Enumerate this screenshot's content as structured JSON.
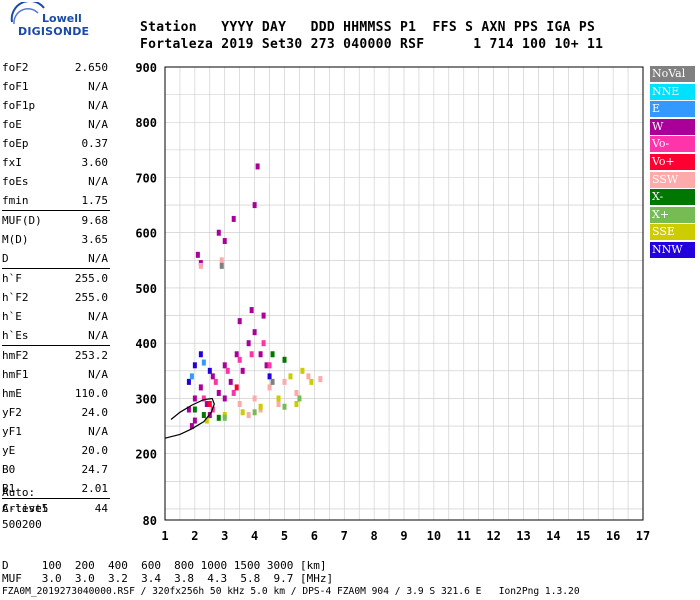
{
  "logo": {
    "top": "Lowell",
    "bottom": "DIGISONDE"
  },
  "header": {
    "line1": "Station   YYYY DAY   DDD HHMMSS P1  FFS S AXN PPS IGA PS",
    "line2": "Fortaleza 2019 Set30 273 040000 RSF      1 714 100 10+ 11"
  },
  "params": [
    {
      "label": "foF2",
      "value": "2.650"
    },
    {
      "label": "foF1",
      "value": "N/A"
    },
    {
      "label": "foF1p",
      "value": "N/A"
    },
    {
      "label": "foE",
      "value": "N/A"
    },
    {
      "label": "foEp",
      "value": "0.37"
    },
    {
      "label": "fxI",
      "value": "3.60"
    },
    {
      "label": "foEs",
      "value": "N/A"
    },
    {
      "label": "fmin",
      "value": "1.75"
    },
    {
      "label": "MUF(D)",
      "value": "9.68"
    },
    {
      "label": "M(D)",
      "value": "3.65"
    },
    {
      "label": "D",
      "value": "N/A"
    },
    {
      "label": "h`F",
      "value": "255.0"
    },
    {
      "label": "h`F2",
      "value": "255.0"
    },
    {
      "label": "h`E",
      "value": "N/A"
    },
    {
      "label": "h`Es",
      "value": "N/A"
    },
    {
      "label": "hmF2",
      "value": "253.2"
    },
    {
      "label": "hmF1",
      "value": "N/A"
    },
    {
      "label": "hmE",
      "value": "110.0"
    },
    {
      "label": "yF2",
      "value": "24.0"
    },
    {
      "label": "yF1",
      "value": "N/A"
    },
    {
      "label": "yE",
      "value": "20.0"
    },
    {
      "label": "B0",
      "value": "24.7"
    },
    {
      "label": "B1",
      "value": "2.01"
    },
    {
      "label": "C-level",
      "value": "44"
    }
  ],
  "auto": {
    "line1": "Auto:",
    "line2": "Artist5",
    "line3": "500200"
  },
  "legend": [
    {
      "label": "NoVal",
      "color": "#808080"
    },
    {
      "label": "NNE",
      "color": "#00e0ff"
    },
    {
      "label": "E",
      "color": "#3399ff"
    },
    {
      "label": "W",
      "color": "#aa0099"
    },
    {
      "label": "Vo-",
      "color": "#ff33aa"
    },
    {
      "label": "Vo+",
      "color": "#ff0033"
    },
    {
      "label": "SSW",
      "color": "#ffaaaa"
    },
    {
      "label": "X-",
      "color": "#007700"
    },
    {
      "label": "X+",
      "color": "#77bb55"
    },
    {
      "label": "SSE",
      "color": "#cccc00"
    },
    {
      "label": "NNW",
      "color": "#2200dd"
    }
  ],
  "bottom": {
    "line1": "D     100  200  400  600  800 1000 1500 3000 [km]",
    "line2": "MUF   3.0  3.0  3.2  3.4  3.8  4.3  5.8  9.7 [MHz]",
    "line3": "FZA0M_2019273040000.RSF / 320fx256h 50 kHz 5.0 km / DPS-4 FZA0M 904 / 3.9 S 321.6 E   Ion2Png 1.3.20"
  },
  "chart_data": {
    "type": "scatter",
    "xlim": [
      1,
      17
    ],
    "ylim": [
      80,
      900
    ],
    "x_ticks": [
      1,
      2,
      3,
      4,
      5,
      6,
      7,
      8,
      9,
      10,
      11,
      12,
      13,
      14,
      15,
      16,
      17
    ],
    "y_ticks": [
      80,
      200,
      300,
      400,
      500,
      600,
      700,
      800,
      900
    ],
    "grid": true,
    "series": [
      {
        "name": "W",
        "color": "#aa0099",
        "points": [
          [
            1.8,
            280
          ],
          [
            2.0,
            300
          ],
          [
            2.2,
            320
          ],
          [
            2.4,
            290
          ],
          [
            2.6,
            340
          ],
          [
            2.8,
            310
          ],
          [
            3.0,
            360
          ],
          [
            3.2,
            330
          ],
          [
            3.4,
            380
          ],
          [
            3.6,
            350
          ],
          [
            3.8,
            400
          ],
          [
            4.0,
            420
          ],
          [
            4.2,
            380
          ],
          [
            4.4,
            360
          ],
          [
            3.0,
            300
          ],
          [
            2.5,
            270
          ],
          [
            2.0,
            260
          ],
          [
            1.9,
            250
          ],
          [
            2.1,
            560
          ],
          [
            2.2,
            545
          ],
          [
            2.8,
            600
          ],
          [
            3.0,
            585
          ],
          [
            3.3,
            625
          ],
          [
            4.0,
            650
          ],
          [
            4.1,
            720
          ],
          [
            3.9,
            460
          ],
          [
            4.3,
            450
          ],
          [
            3.5,
            440
          ]
        ]
      },
      {
        "name": "Vo-",
        "color": "#ff33aa",
        "points": [
          [
            2.3,
            300
          ],
          [
            2.7,
            330
          ],
          [
            3.1,
            350
          ],
          [
            3.5,
            370
          ],
          [
            3.9,
            380
          ],
          [
            4.3,
            400
          ],
          [
            4.5,
            360
          ],
          [
            3.3,
            310
          ],
          [
            2.6,
            280
          ]
        ]
      },
      {
        "name": "SSW",
        "color": "#ffaaaa",
        "points": [
          [
            3.5,
            290
          ],
          [
            4.0,
            300
          ],
          [
            4.5,
            320
          ],
          [
            5.0,
            330
          ],
          [
            5.4,
            310
          ],
          [
            5.8,
            340
          ],
          [
            6.2,
            335
          ],
          [
            4.8,
            290
          ],
          [
            4.2,
            280
          ],
          [
            3.8,
            270
          ],
          [
            2.9,
            550
          ],
          [
            2.2,
            540
          ]
        ]
      },
      {
        "name": "SSE",
        "color": "#cccc00",
        "points": [
          [
            2.4,
            260
          ],
          [
            3.0,
            270
          ],
          [
            3.6,
            275
          ],
          [
            4.2,
            285
          ],
          [
            4.8,
            300
          ],
          [
            5.2,
            340
          ],
          [
            5.6,
            350
          ],
          [
            5.9,
            330
          ],
          [
            5.4,
            290
          ]
        ]
      },
      {
        "name": "X-",
        "color": "#007700",
        "points": [
          [
            2.0,
            280
          ],
          [
            2.3,
            270
          ],
          [
            4.6,
            380
          ],
          [
            5.0,
            370
          ],
          [
            2.8,
            265
          ]
        ]
      },
      {
        "name": "X+",
        "color": "#77bb55",
        "points": [
          [
            3.0,
            265
          ],
          [
            4.0,
            275
          ],
          [
            5.0,
            285
          ],
          [
            5.5,
            300
          ]
        ]
      },
      {
        "name": "NNW",
        "color": "#2200dd",
        "points": [
          [
            1.8,
            330
          ],
          [
            2.0,
            360
          ],
          [
            2.2,
            380
          ],
          [
            2.5,
            350
          ],
          [
            4.5,
            340
          ]
        ]
      },
      {
        "name": "E",
        "color": "#3399ff",
        "points": [
          [
            1.9,
            340
          ],
          [
            2.3,
            365
          ]
        ]
      },
      {
        "name": "Vo+",
        "color": "#ff0033",
        "points": [
          [
            2.5,
            290
          ],
          [
            3.4,
            320
          ]
        ]
      },
      {
        "name": "NoVal",
        "color": "#808080",
        "points": [
          [
            2.9,
            540
          ],
          [
            4.6,
            330
          ]
        ]
      }
    ],
    "profile_line": {
      "color": "#000000",
      "points": [
        [
          1.0,
          228
        ],
        [
          1.5,
          235
        ],
        [
          1.9,
          245
        ],
        [
          2.3,
          258
        ],
        [
          2.55,
          275
        ],
        [
          2.65,
          290
        ],
        [
          2.58,
          300
        ],
        [
          2.3,
          298
        ],
        [
          1.9,
          288
        ],
        [
          1.5,
          275
        ],
        [
          1.2,
          262
        ]
      ]
    }
  }
}
